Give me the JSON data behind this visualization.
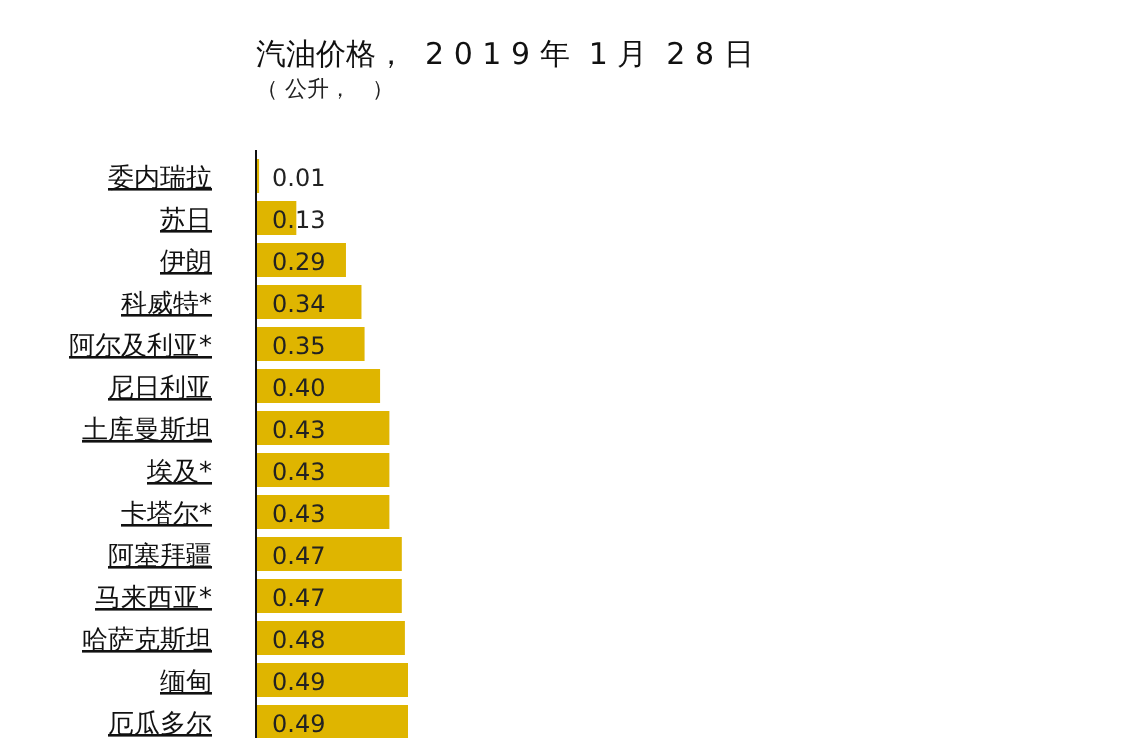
{
  "chart_data": {
    "type": "bar",
    "orientation": "horizontal",
    "title": "汽油价格，  2 0 1 9 年  1 月  2 8 日",
    "subtitle": "（ 公升，   ）",
    "categories": [
      "委内瑞拉",
      "苏日",
      "伊朗",
      "科威特*",
      "阿尔及利亚*",
      "尼日利亚",
      "土库曼斯坦",
      "埃及*",
      "卡塔尔*",
      "阿塞拜疆",
      "马来西亚*",
      "哈萨克斯坦",
      "缅甸",
      "厄瓜多尔"
    ],
    "values": [
      0.01,
      0.13,
      0.29,
      0.34,
      0.35,
      0.4,
      0.43,
      0.43,
      0.43,
      0.47,
      0.47,
      0.48,
      0.49,
      0.49
    ],
    "value_labels": [
      "0.01",
      "0.13",
      "0.29",
      "0.34",
      "0.35",
      "0.40",
      "0.43",
      "0.43",
      "0.43",
      "0.47",
      "0.47",
      "0.48",
      "0.49",
      "0.49"
    ],
    "color": "#dfb500"
  }
}
